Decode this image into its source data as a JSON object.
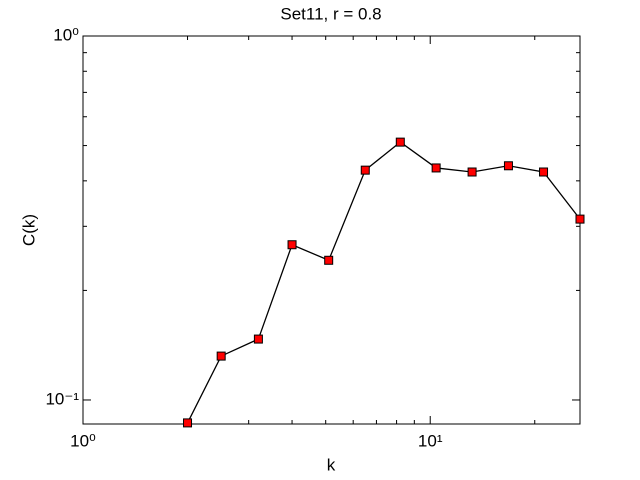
{
  "chart_data": {
    "type": "line",
    "title": "Set11, r = 0.8",
    "xlabel": "k",
    "ylabel": "C(k)",
    "x": [
      2,
      2.5,
      3.2,
      4,
      5.1,
      6.5,
      8.2,
      10.4,
      13.2,
      16.8,
      21.2,
      27
    ],
    "values": [
      0.0865,
      0.132,
      0.147,
      0.267,
      0.242,
      0.428,
      0.511,
      0.434,
      0.423,
      0.44,
      0.423,
      0.314
    ],
    "color": "#ff0000",
    "line_color": "#000000",
    "marker": "square",
    "xscale": "log",
    "yscale": "log",
    "xlim": [
      1,
      27
    ],
    "ylim": [
      0.0859,
      1
    ],
    "xticks": [
      {
        "value": 1,
        "label": "10⁰"
      },
      {
        "value": 10,
        "label": "10¹"
      }
    ],
    "yticks": [
      {
        "value": 0.1,
        "label": "10⁻¹"
      },
      {
        "value": 1,
        "label": "10⁰"
      }
    ],
    "xminor_ticks": [
      2,
      3,
      4,
      5,
      6,
      7,
      8,
      9,
      20
    ],
    "yminor_ticks": [
      0.2,
      0.3,
      0.4,
      0.5,
      0.6,
      0.7,
      0.8,
      0.9
    ],
    "grid": false
  }
}
